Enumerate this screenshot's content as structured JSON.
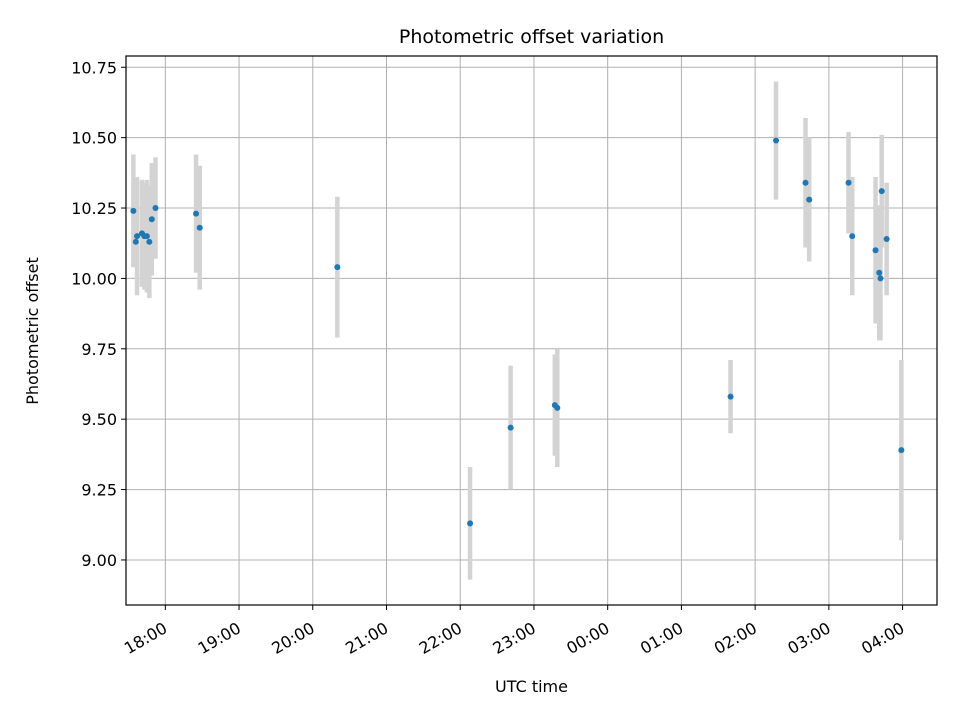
{
  "chart_data": {
    "type": "scatter",
    "title": "Photometric offset variation",
    "xlabel": "UTC time",
    "ylabel": "Photometric offset",
    "x_axis_type": "time",
    "xlim": [
      "17:28",
      "04:28"
    ],
    "ylim": [
      8.84,
      10.79
    ],
    "x_ticks": [
      "18:00",
      "19:00",
      "20:00",
      "21:00",
      "22:00",
      "23:00",
      "00:00",
      "01:00",
      "02:00",
      "03:00",
      "04:00"
    ],
    "y_ticks": [
      "9.00",
      "9.25",
      "9.50",
      "9.75",
      "10.00",
      "10.25",
      "10.50",
      "10.75"
    ],
    "grid": true,
    "marker_color": "#1f77b4",
    "errorbar_color": "#d3d3d3",
    "points": [
      {
        "x": "17:34",
        "y": 10.24,
        "err": 0.2
      },
      {
        "x": "17:36",
        "y": 10.13,
        "err": 0.09
      },
      {
        "x": "17:37",
        "y": 10.15,
        "err": 0.21
      },
      {
        "x": "17:41",
        "y": 10.16,
        "err": 0.19
      },
      {
        "x": "17:43",
        "y": 10.15,
        "err": 0.19
      },
      {
        "x": "17:45",
        "y": 10.15,
        "err": 0.2
      },
      {
        "x": "17:47",
        "y": 10.13,
        "err": 0.2
      },
      {
        "x": "17:49",
        "y": 10.21,
        "err": 0.2
      },
      {
        "x": "17:52",
        "y": 10.25,
        "err": 0.18
      },
      {
        "x": "18:25",
        "y": 10.23,
        "err": 0.21
      },
      {
        "x": "18:28",
        "y": 10.18,
        "err": 0.22
      },
      {
        "x": "20:20",
        "y": 10.04,
        "err": 0.25
      },
      {
        "x": "22:08",
        "y": 9.13,
        "err": 0.2
      },
      {
        "x": "22:41",
        "y": 9.47,
        "err": 0.22
      },
      {
        "x": "23:17",
        "y": 9.55,
        "err": 0.18
      },
      {
        "x": "23:19",
        "y": 9.54,
        "err": 0.21
      },
      {
        "x": "01:40",
        "y": 9.58,
        "err": 0.13
      },
      {
        "x": "02:17",
        "y": 10.49,
        "err": 0.21
      },
      {
        "x": "02:41",
        "y": 10.34,
        "err": 0.23
      },
      {
        "x": "02:44",
        "y": 10.28,
        "err": 0.22
      },
      {
        "x": "03:16",
        "y": 10.34,
        "err": 0.18
      },
      {
        "x": "03:19",
        "y": 10.15,
        "err": 0.21
      },
      {
        "x": "03:38",
        "y": 10.1,
        "err": 0.26
      },
      {
        "x": "03:41",
        "y": 10.02,
        "err": 0.24
      },
      {
        "x": "03:42",
        "y": 10.0,
        "err": 0.22
      },
      {
        "x": "03:43",
        "y": 10.31,
        "err": 0.2
      },
      {
        "x": "03:47",
        "y": 10.14,
        "err": 0.2
      },
      {
        "x": "03:59",
        "y": 9.39,
        "err": 0.32
      }
    ]
  }
}
